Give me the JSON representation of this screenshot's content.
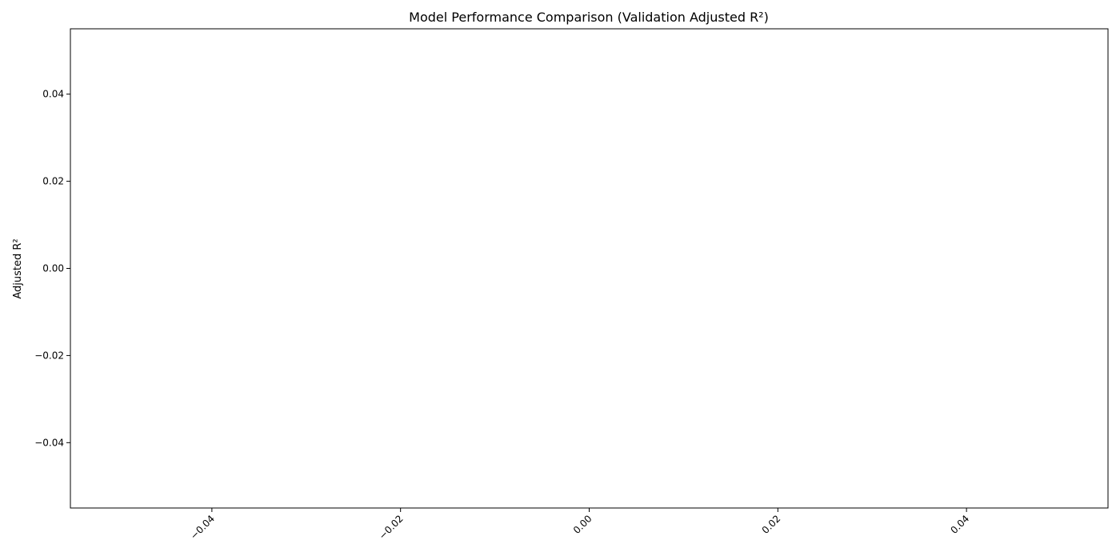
{
  "chart_data": {
    "type": "bar",
    "title": "Model Performance Comparison (Validation Adjusted R²)",
    "xlabel": "",
    "ylabel": "Adjusted R²",
    "categories": [],
    "values": [],
    "xlim": [
      -0.055,
      0.055
    ],
    "ylim": [
      -0.055,
      0.055
    ],
    "x_ticks": [
      -0.04,
      -0.02,
      0.0,
      0.02,
      0.04
    ],
    "x_tick_labels": [
      "−0.04",
      "−0.02",
      "0.00",
      "0.02",
      "0.04"
    ],
    "y_ticks": [
      -0.04,
      -0.02,
      0.0,
      0.02,
      0.04
    ],
    "y_tick_labels": [
      "−0.04",
      "−0.02",
      "0.00",
      "0.02",
      "0.04"
    ],
    "x_tick_rotation": "45-degrees",
    "grid": false,
    "legend": "none"
  }
}
